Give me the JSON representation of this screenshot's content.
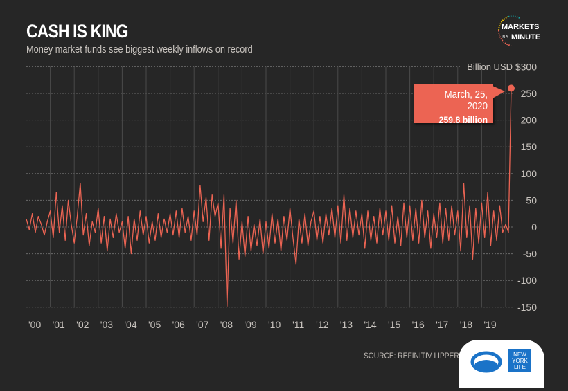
{
  "header": {
    "title": "CASH IS KING",
    "subtitle": "Money market funds see biggest weekly inflows on record"
  },
  "logo": {
    "line1": "MARKETS",
    "line2": "IN A",
    "line3": "MINUTE"
  },
  "footer": {
    "source": "SOURCE: REFINITIV LIPPER",
    "sponsor": "NEW YORK LIFE"
  },
  "chart_data": {
    "type": "line",
    "title": "CASH IS KING",
    "subtitle": "Money market funds see biggest weekly inflows on record",
    "ylabel": "Billion USD",
    "ylim": [
      -150,
      300
    ],
    "yticks": [
      "$300",
      "250",
      "200",
      "150",
      "100",
      "50",
      "0",
      "-50",
      "-100",
      "-150"
    ],
    "ytick_values": [
      300,
      250,
      200,
      150,
      100,
      50,
      0,
      -50,
      -100,
      -150
    ],
    "xticks": [
      "'00",
      "'01",
      "'02",
      "'03",
      "'04",
      "'05",
      "'06",
      "'07",
      "'08",
      "'09",
      "'10",
      "'11",
      "'12",
      "'13",
      "'14",
      "'15",
      "'16",
      "'17",
      "'18",
      "'19"
    ],
    "grid": true,
    "line_color": "#ec6453",
    "annotation": {
      "date": "March, 25, 2020",
      "value": 259.8,
      "label": "259.8 billion"
    },
    "years": [
      {
        "year": 2000,
        "values": [
          15,
          -5,
          25,
          -10,
          20,
          5,
          -15,
          10
        ]
      },
      {
        "year": 2001,
        "values": [
          30,
          -20,
          65,
          -10,
          40,
          -25,
          50,
          5
        ]
      },
      {
        "year": 2002,
        "values": [
          -30,
          20,
          82,
          -15,
          25,
          -35,
          10,
          -10
        ]
      },
      {
        "year": 2003,
        "values": [
          35,
          -30,
          20,
          -45,
          15,
          -20,
          25,
          -10
        ]
      },
      {
        "year": 2004,
        "values": [
          10,
          -40,
          20,
          -50,
          15,
          -25,
          30,
          -15
        ]
      },
      {
        "year": 2005,
        "values": [
          20,
          -30,
          10,
          -25,
          25,
          -20,
          15,
          -10
        ]
      },
      {
        "year": 2006,
        "values": [
          25,
          -15,
          30,
          -20,
          35,
          -10,
          20,
          -25
        ]
      },
      {
        "year": 2007,
        "values": [
          30,
          -15,
          78,
          10,
          55,
          -25,
          60,
          20
        ]
      },
      {
        "year": 2008,
        "values": [
          45,
          -40,
          60,
          -148,
          35,
          -30,
          50,
          -60
        ]
      },
      {
        "year": 2009,
        "values": [
          10,
          -55,
          20,
          -45,
          5,
          -35,
          15,
          -50
        ]
      },
      {
        "year": 2010,
        "values": [
          10,
          -40,
          25,
          -30,
          15,
          -45,
          20,
          -25
        ]
      },
      {
        "year": 2011,
        "values": [
          35,
          -20,
          -70,
          15,
          -30,
          25,
          -35,
          10
        ]
      },
      {
        "year": 2012,
        "values": [
          30,
          -25,
          20,
          -30,
          25,
          -15,
          35,
          -20
        ]
      },
      {
        "year": 2013,
        "values": [
          40,
          -30,
          60,
          -25,
          35,
          -20,
          30,
          -15
        ]
      },
      {
        "year": 2014,
        "values": [
          25,
          -40,
          30,
          -25,
          20,
          -30,
          35,
          -15
        ]
      },
      {
        "year": 2015,
        "values": [
          30,
          -25,
          40,
          -30,
          20,
          -35,
          45,
          -20
        ]
      },
      {
        "year": 2016,
        "values": [
          40,
          -25,
          35,
          -30,
          50,
          -20,
          30,
          -40
        ]
      },
      {
        "year": 2017,
        "values": [
          25,
          -20,
          45,
          -30,
          35,
          -25,
          40,
          -15
        ]
      },
      {
        "year": 2018,
        "values": [
          30,
          -45,
          82,
          -20,
          40,
          -60,
          35,
          -30
        ]
      },
      {
        "year": 2019,
        "values": [
          45,
          -20,
          65,
          -35,
          30,
          -25,
          40,
          -10
        ]
      },
      {
        "year": 2020,
        "values": [
          5,
          -10,
          259.8
        ]
      }
    ]
  }
}
